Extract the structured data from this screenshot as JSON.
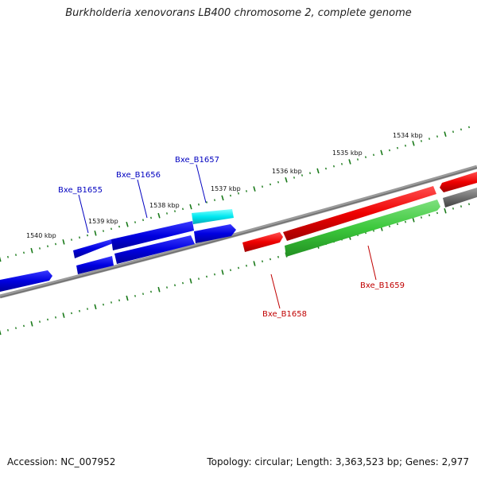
{
  "title": "Burkholderia xenovorans LB400 chromosome 2, complete genome",
  "footer": {
    "accession": "Accession: NC_007952",
    "summary": "Topology: circular; Length: 3,363,523 bp; Genes: 2,977"
  },
  "ruler_labels": [
    "1534 kbp",
    "1535 kbp",
    "1536 kbp",
    "1537 kbp",
    "1538 kbp",
    "1539 kbp",
    "1540 kbp"
  ],
  "gene_labels": {
    "b1655": "Bxe_B1655",
    "b1656": "Bxe_B1656",
    "b1657": "Bxe_B1657",
    "b1658": "Bxe_B1658",
    "b1659": "Bxe_B1659"
  },
  "colors": {
    "blue": "#0000dd",
    "cyan": "#00e0e8",
    "red": "#e80000",
    "green": "#3cc83c",
    "gray": "#6e6e6e",
    "tick": "#1a7a1a",
    "blue_label": "#0000c0",
    "red_label": "#c00000"
  }
}
